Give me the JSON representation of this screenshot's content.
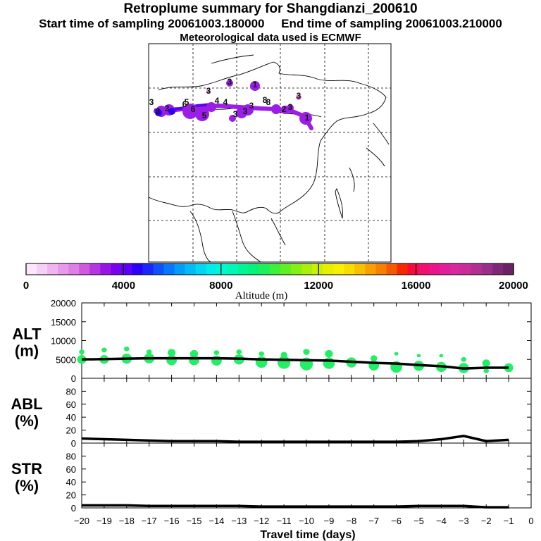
{
  "header": {
    "title": "Retroplume summary for Shangdianzi_200610",
    "start_label": "Start time of sampling 20061003.180000",
    "end_label": "End time of sampling 20061003.210000",
    "met_label": "Meteorological data used is ECMWF"
  },
  "colorbar": {
    "label": "Altitude (m)",
    "tick_labels": [
      "0",
      "4000",
      "8000",
      "12000",
      "16000",
      "20000"
    ],
    "colors": [
      "#fbe6fb",
      "#f5cff5",
      "#f0b5f0",
      "#e79ae9",
      "#dd7fe4",
      "#cf5ade",
      "#b635e2",
      "#9b14e6",
      "#7a00f0",
      "#5c00f5",
      "#2a00f8",
      "#1a27fb",
      "#0e52fb",
      "#0878fb",
      "#059cf8",
      "#00bcf5",
      "#00d7f0",
      "#00eeea",
      "#00f7d2",
      "#00f7b4",
      "#00f596",
      "#06f27a",
      "#1ff05a",
      "#3cf03c",
      "#5ef024",
      "#84f014",
      "#aaf00a",
      "#ccf005",
      "#e8f000",
      "#f7f000",
      "#f7de00",
      "#f7c000",
      "#f7a000",
      "#f78000",
      "#f55a00",
      "#f52800",
      "#f50a3c",
      "#f0106e",
      "#e81488",
      "#e0209a",
      "#d8289f",
      "#c82c98",
      "#b03092",
      "#9a2e8a",
      "#802878",
      "#6a2266"
    ]
  },
  "map": {
    "cluster_numbers": [
      "3",
      "4",
      "3",
      "3",
      "8",
      "6",
      "5",
      "6",
      "5",
      "4",
      "3",
      "3",
      "3",
      "3",
      "8",
      "3",
      "2",
      "1",
      "1",
      "3",
      "3"
    ]
  },
  "chart_data": [
    {
      "type": "line",
      "panel": "ALT",
      "ylabel": "ALT (m)",
      "ylim": [
        0,
        20000
      ],
      "yticks": [
        0,
        5000,
        10000,
        15000,
        20000
      ],
      "xlim": [
        -20,
        0
      ],
      "x": [
        -20,
        -19,
        -18,
        -17,
        -16,
        -15,
        -14,
        -13,
        -12,
        -11,
        -10,
        -9,
        -8,
        -7,
        -6,
        -5,
        -4,
        -3,
        -2,
        -1
      ],
      "mean_altitude": [
        5000,
        5100,
        5200,
        5300,
        5300,
        5300,
        5300,
        5200,
        5000,
        4900,
        4800,
        4700,
        4400,
        4100,
        3900,
        3500,
        3200,
        2600,
        2800,
        2800
      ],
      "cluster_points": [
        {
          "x": -20,
          "y": 5000,
          "size": 5
        },
        {
          "x": -20,
          "y": 7000,
          "size": 2
        },
        {
          "x": -19,
          "y": 5000,
          "size": 5
        },
        {
          "x": -19,
          "y": 7500,
          "size": 2
        },
        {
          "x": -18,
          "y": 5200,
          "size": 6
        },
        {
          "x": -18,
          "y": 7800,
          "size": 2
        },
        {
          "x": -17,
          "y": 5300,
          "size": 6
        },
        {
          "x": -17,
          "y": 7000,
          "size": 2
        },
        {
          "x": -16,
          "y": 4800,
          "size": 6
        },
        {
          "x": -16,
          "y": 6800,
          "size": 4
        },
        {
          "x": -15,
          "y": 4800,
          "size": 6
        },
        {
          "x": -15,
          "y": 6500,
          "size": 4
        },
        {
          "x": -14,
          "y": 4700,
          "size": 6
        },
        {
          "x": -14,
          "y": 6800,
          "size": 2
        },
        {
          "x": -13,
          "y": 5000,
          "size": 6
        },
        {
          "x": -13,
          "y": 7000,
          "size": 2
        },
        {
          "x": -12,
          "y": 4300,
          "size": 7
        },
        {
          "x": -12,
          "y": 6500,
          "size": 2
        },
        {
          "x": -11,
          "y": 4200,
          "size": 8
        },
        {
          "x": -11,
          "y": 6200,
          "size": 3
        },
        {
          "x": -10,
          "y": 3800,
          "size": 8
        },
        {
          "x": -10,
          "y": 7000,
          "size": 3
        },
        {
          "x": -9,
          "y": 4000,
          "size": 7
        },
        {
          "x": -9,
          "y": 6500,
          "size": 4
        },
        {
          "x": -8,
          "y": 4200,
          "size": 6
        },
        {
          "x": -7,
          "y": 3400,
          "size": 6
        },
        {
          "x": -7,
          "y": 5300,
          "size": 3
        },
        {
          "x": -6,
          "y": 3000,
          "size": 7
        },
        {
          "x": -6,
          "y": 6500,
          "size": 1
        },
        {
          "x": -5,
          "y": 3300,
          "size": 6
        },
        {
          "x": -5,
          "y": 6000,
          "size": 1
        },
        {
          "x": -4,
          "y": 3000,
          "size": 6
        },
        {
          "x": -4,
          "y": 6000,
          "size": 1
        },
        {
          "x": -3,
          "y": 2700,
          "size": 6
        },
        {
          "x": -3,
          "y": 5000,
          "size": 2
        },
        {
          "x": -2,
          "y": 4000,
          "size": 4
        },
        {
          "x": -2,
          "y": 2000,
          "size": 2
        },
        {
          "x": -1,
          "y": 2800,
          "size": 5
        }
      ]
    },
    {
      "type": "line",
      "panel": "ABL",
      "ylabel": "ABL (%)",
      "ylim": [
        0,
        100
      ],
      "yticks": [
        0,
        20,
        40,
        60,
        80
      ],
      "x": [
        -20,
        -19,
        -18,
        -17,
        -16,
        -15,
        -14,
        -13,
        -12,
        -11,
        -10,
        -9,
        -8,
        -7,
        -6,
        -5,
        -4,
        -3,
        -2,
        -1
      ],
      "values": [
        7,
        6,
        5,
        4,
        3,
        3,
        3,
        2,
        2,
        2,
        2,
        2,
        2,
        2,
        2,
        3,
        6,
        11,
        3,
        5
      ]
    },
    {
      "type": "line",
      "panel": "STR",
      "ylabel": "STR (%)",
      "ylim": [
        0,
        100
      ],
      "yticks": [
        0,
        20,
        40,
        60,
        80
      ],
      "x": [
        -20,
        -19,
        -18,
        -17,
        -16,
        -15,
        -14,
        -13,
        -12,
        -11,
        -10,
        -9,
        -8,
        -7,
        -6,
        -5,
        -4,
        -3,
        -2,
        -1
      ],
      "values": [
        4,
        4,
        4,
        3,
        3,
        3,
        3,
        3,
        2,
        2,
        2,
        2,
        2,
        2,
        2,
        3,
        3,
        3,
        1,
        1
      ]
    }
  ],
  "xaxis": {
    "label": "Travel time (days)",
    "tick_labels": [
      "−20",
      "−19",
      "−18",
      "−17",
      "−16",
      "−15",
      "−14",
      "−13",
      "−12",
      "−11",
      "−10",
      "−9",
      "−8",
      "−7",
      "−6",
      "−5",
      "−4",
      "−3",
      "−2",
      "−1",
      "0"
    ]
  },
  "style": {
    "point_color": "#22ee66",
    "line_color": "#000000",
    "plume_color": "#9b1ee6"
  }
}
